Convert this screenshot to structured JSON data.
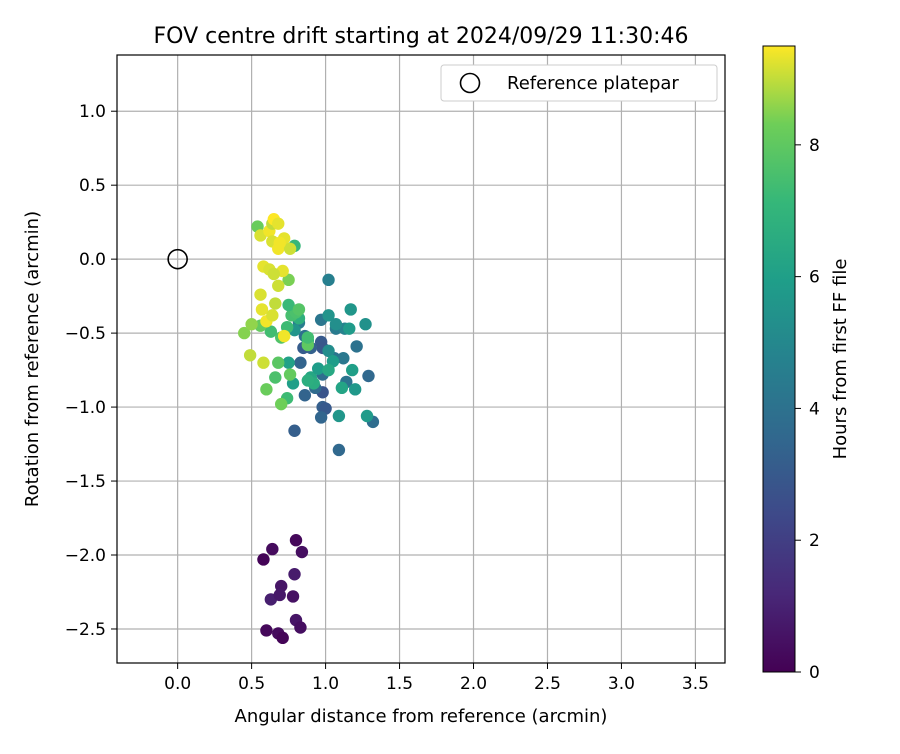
{
  "chart_data": {
    "type": "scatter",
    "title": "FOV centre drift starting at 2024/09/29 11:30:46",
    "xlabel": "Angular distance from reference (arcmin)",
    "ylabel": "Rotation from reference (arcmin)",
    "xlim": [
      -0.41,
      3.7
    ],
    "ylim": [
      -2.73,
      1.38
    ],
    "xticks": [
      "0.0",
      "0.5",
      "1.0",
      "1.5",
      "2.0",
      "2.5",
      "3.0",
      "3.5"
    ],
    "yticks": [
      "1.0",
      "0.5",
      "0.0",
      "−0.5",
      "−1.0",
      "−1.5",
      "−2.0",
      "−2.5"
    ],
    "grid": true,
    "legend": {
      "placement": "top-right",
      "entries": [
        "Reference platepar"
      ]
    },
    "colorbar": {
      "label": "Hours from first FF file",
      "range": [
        0,
        9.5
      ],
      "ticks": [
        "0",
        "2",
        "4",
        "6",
        "8"
      ],
      "colormap": "viridis"
    },
    "reference_point": {
      "x": 0.0,
      "y": 0.0
    },
    "series": [
      {
        "points": [
          {
            "x": 0.58,
            "y": -2.03,
            "t": 0.1
          },
          {
            "x": 0.64,
            "y": -1.96,
            "t": 0.3
          },
          {
            "x": 0.8,
            "y": -1.9,
            "t": 0.2
          },
          {
            "x": 0.84,
            "y": -1.98,
            "t": 0.4
          },
          {
            "x": 0.7,
            "y": -2.21,
            "t": 0.6
          },
          {
            "x": 0.79,
            "y": -2.13,
            "t": 0.8
          },
          {
            "x": 0.63,
            "y": -2.3,
            "t": 0.9
          },
          {
            "x": 0.69,
            "y": -2.27,
            "t": 0.7
          },
          {
            "x": 0.78,
            "y": -2.28,
            "t": 0.5
          },
          {
            "x": 0.8,
            "y": -2.44,
            "t": 0.6
          },
          {
            "x": 0.83,
            "y": -2.49,
            "t": 0.4
          },
          {
            "x": 0.6,
            "y": -2.51,
            "t": 0.2
          },
          {
            "x": 0.68,
            "y": -2.53,
            "t": 0.3
          },
          {
            "x": 0.71,
            "y": -2.56,
            "t": 0.1
          },
          {
            "x": 0.79,
            "y": -1.16,
            "t": 3.2
          },
          {
            "x": 1.09,
            "y": -1.29,
            "t": 3.6
          },
          {
            "x": 0.86,
            "y": -0.92,
            "t": 3.4
          },
          {
            "x": 0.98,
            "y": -0.9,
            "t": 2.8
          },
          {
            "x": 0.98,
            "y": -1.0,
            "t": 3.2
          },
          {
            "x": 1.0,
            "y": -1.01,
            "t": 3.0
          },
          {
            "x": 0.97,
            "y": -1.07,
            "t": 3.5
          },
          {
            "x": 1.32,
            "y": -1.1,
            "t": 3.8
          },
          {
            "x": 1.29,
            "y": -0.79,
            "t": 3.6
          },
          {
            "x": 1.21,
            "y": -0.59,
            "t": 4.0
          },
          {
            "x": 1.02,
            "y": -0.14,
            "t": 4.6
          },
          {
            "x": 0.97,
            "y": -0.41,
            "t": 4.2
          },
          {
            "x": 0.97,
            "y": -0.56,
            "t": 3.0
          },
          {
            "x": 0.98,
            "y": -0.6,
            "t": 2.9
          },
          {
            "x": 0.9,
            "y": -0.6,
            "t": 3.3
          },
          {
            "x": 0.85,
            "y": -0.6,
            "t": 3.1
          },
          {
            "x": 0.83,
            "y": -0.7,
            "t": 3.4
          },
          {
            "x": 0.86,
            "y": -0.52,
            "t": 3.9
          },
          {
            "x": 0.93,
            "y": -0.87,
            "t": 3.7
          },
          {
            "x": 0.98,
            "y": -0.78,
            "t": 3.8
          },
          {
            "x": 1.06,
            "y": -0.67,
            "t": 4.1
          },
          {
            "x": 1.12,
            "y": -0.67,
            "t": 4.3
          },
          {
            "x": 1.07,
            "y": -0.47,
            "t": 4.4
          },
          {
            "x": 1.14,
            "y": -0.83,
            "t": 4.1
          },
          {
            "x": 1.13,
            "y": -0.47,
            "t": 4.8
          },
          {
            "x": 0.82,
            "y": -0.43,
            "t": 4.5
          },
          {
            "x": 1.02,
            "y": -0.38,
            "t": 5.5
          },
          {
            "x": 1.07,
            "y": -0.44,
            "t": 5.3
          },
          {
            "x": 1.17,
            "y": -0.34,
            "t": 5.6
          },
          {
            "x": 1.16,
            "y": -0.47,
            "t": 5.8
          },
          {
            "x": 1.27,
            "y": -0.44,
            "t": 5.4
          },
          {
            "x": 1.02,
            "y": -0.62,
            "t": 5.2
          },
          {
            "x": 1.05,
            "y": -0.69,
            "t": 5.9
          },
          {
            "x": 1.18,
            "y": -0.75,
            "t": 6.0
          },
          {
            "x": 1.2,
            "y": -0.88,
            "t": 5.7
          },
          {
            "x": 1.11,
            "y": -0.87,
            "t": 6.2
          },
          {
            "x": 1.09,
            "y": -1.06,
            "t": 5.6
          },
          {
            "x": 1.28,
            "y": -1.06,
            "t": 5.8
          },
          {
            "x": 0.9,
            "y": -0.8,
            "t": 6.3
          },
          {
            "x": 0.95,
            "y": -0.74,
            "t": 5.9
          },
          {
            "x": 1.02,
            "y": -0.75,
            "t": 6.4
          },
          {
            "x": 0.92,
            "y": -0.84,
            "t": 6.6
          },
          {
            "x": 0.88,
            "y": -0.82,
            "t": 6.7
          },
          {
            "x": 0.78,
            "y": -0.84,
            "t": 6.0
          },
          {
            "x": 0.75,
            "y": -0.7,
            "t": 6.1
          },
          {
            "x": 0.79,
            "y": -0.48,
            "t": 5.5
          },
          {
            "x": 0.82,
            "y": -0.4,
            "t": 6.8
          },
          {
            "x": 0.88,
            "y": -0.55,
            "t": 6.9
          },
          {
            "x": 0.74,
            "y": -0.46,
            "t": 7.3
          },
          {
            "x": 0.77,
            "y": -0.38,
            "t": 7.5
          },
          {
            "x": 0.8,
            "y": -0.36,
            "t": 7.6
          },
          {
            "x": 0.75,
            "y": -0.31,
            "t": 7.2
          },
          {
            "x": 0.82,
            "y": -0.34,
            "t": 7.8
          },
          {
            "x": 0.88,
            "y": -0.58,
            "t": 8.0
          },
          {
            "x": 0.88,
            "y": -0.53,
            "t": 7.4
          },
          {
            "x": 0.7,
            "y": -0.53,
            "t": 7.7
          },
          {
            "x": 0.68,
            "y": -0.7,
            "t": 7.9
          },
          {
            "x": 0.66,
            "y": -0.8,
            "t": 7.6
          },
          {
            "x": 0.76,
            "y": -0.78,
            "t": 8.1
          },
          {
            "x": 0.74,
            "y": -0.94,
            "t": 7.3
          },
          {
            "x": 0.7,
            "y": -0.98,
            "t": 8.3
          },
          {
            "x": 0.6,
            "y": -0.88,
            "t": 8.2
          },
          {
            "x": 0.63,
            "y": -0.49,
            "t": 7.4
          },
          {
            "x": 0.56,
            "y": -0.45,
            "t": 8.1
          },
          {
            "x": 0.79,
            "y": 0.09,
            "t": 7.1
          },
          {
            "x": 0.75,
            "y": -0.14,
            "t": 8.4
          },
          {
            "x": 0.54,
            "y": 0.22,
            "t": 8.2
          },
          {
            "x": 0.45,
            "y": -0.5,
            "t": 8.5
          },
          {
            "x": 0.5,
            "y": -0.44,
            "t": 8.6
          },
          {
            "x": 0.49,
            "y": -0.65,
            "t": 9.0
          },
          {
            "x": 0.58,
            "y": -0.7,
            "t": 9.1
          },
          {
            "x": 0.56,
            "y": -0.24,
            "t": 9.2
          },
          {
            "x": 0.57,
            "y": -0.34,
            "t": 9.3
          },
          {
            "x": 0.6,
            "y": -0.42,
            "t": 9.4
          },
          {
            "x": 0.58,
            "y": -0.05,
            "t": 9.3
          },
          {
            "x": 0.62,
            "y": -0.07,
            "t": 9.2
          },
          {
            "x": 0.68,
            "y": -0.18,
            "t": 9.1
          },
          {
            "x": 0.66,
            "y": -0.3,
            "t": 9.0
          },
          {
            "x": 0.64,
            "y": -0.38,
            "t": 9.2
          },
          {
            "x": 0.72,
            "y": -0.52,
            "t": 9.4
          },
          {
            "x": 0.71,
            "y": -0.08,
            "t": 9.3
          },
          {
            "x": 0.65,
            "y": -0.1,
            "t": 9.1
          },
          {
            "x": 0.56,
            "y": 0.16,
            "t": 9.2
          },
          {
            "x": 0.62,
            "y": 0.19,
            "t": 9.4
          },
          {
            "x": 0.64,
            "y": 0.24,
            "t": 9.0
          },
          {
            "x": 0.65,
            "y": 0.27,
            "t": 9.5
          },
          {
            "x": 0.68,
            "y": 0.24,
            "t": 9.3
          },
          {
            "x": 0.64,
            "y": 0.12,
            "t": 9.2
          },
          {
            "x": 0.68,
            "y": 0.07,
            "t": 9.4
          },
          {
            "x": 0.72,
            "y": 0.14,
            "t": 9.3
          },
          {
            "x": 0.76,
            "y": 0.07,
            "t": 9.1
          },
          {
            "x": 0.69,
            "y": 0.11,
            "t": 9.4
          }
        ]
      }
    ]
  }
}
